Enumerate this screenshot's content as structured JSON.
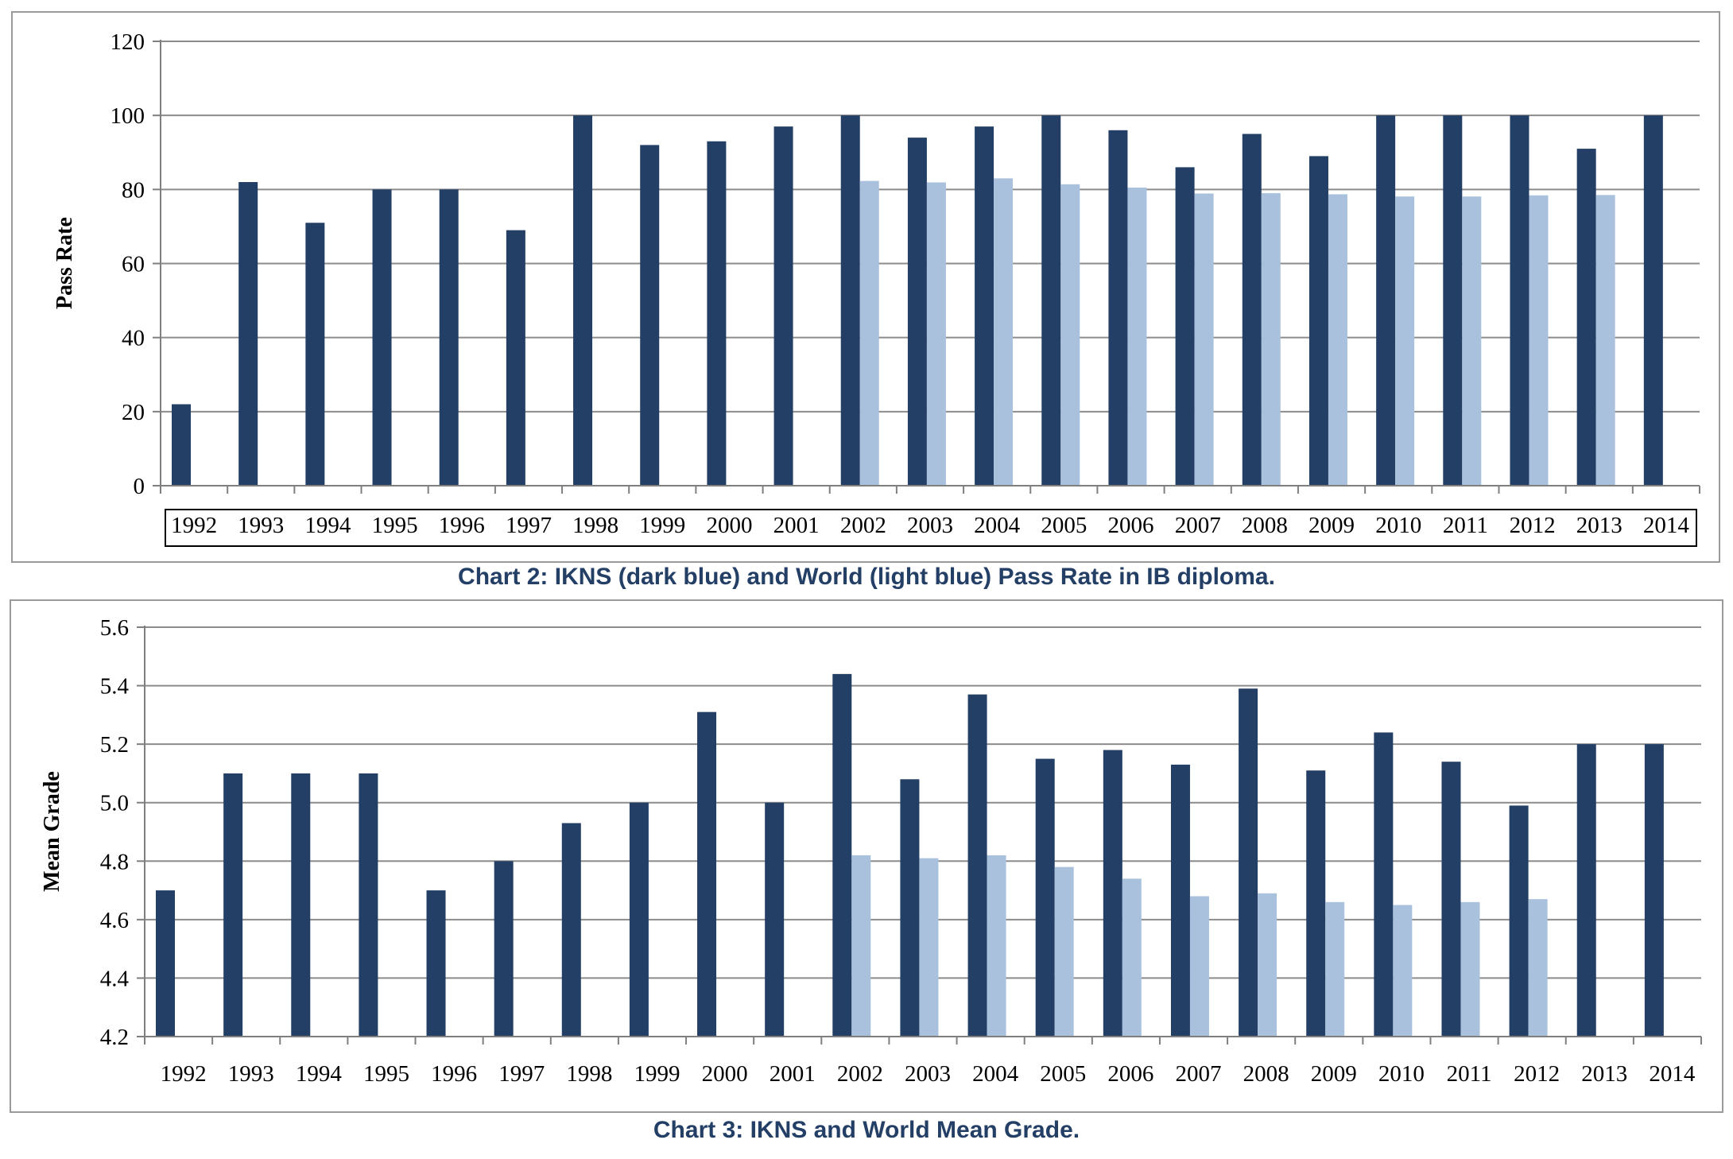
{
  "colors": {
    "ikns": "#243f66",
    "world": "#a9c1dd",
    "grid": "#8c8c8c",
    "axis": "#7f7f7f"
  },
  "chart_data": [
    {
      "type": "bar",
      "title": "Chart 2:  IKNS (dark blue) and World (light blue) Pass Rate in IB diploma.",
      "xlabel": "",
      "ylabel": "Pass Rate",
      "ylim": [
        0,
        120
      ],
      "yticks": [
        "0",
        "20",
        "40",
        "60",
        "80",
        "100",
        "120"
      ],
      "grid": true,
      "categories": [
        "1992",
        "1993",
        "1994",
        "1995",
        "1996",
        "1997",
        "1998",
        "1999",
        "2000",
        "2001",
        "2002",
        "2003",
        "2004",
        "2005",
        "2006",
        "2007",
        "2008",
        "2009",
        "2010",
        "2011",
        "2012",
        "2013",
        "2014"
      ],
      "series": [
        {
          "values": [
            22,
            82,
            71,
            80,
            80,
            69,
            100,
            92,
            93,
            97,
            100,
            94,
            97,
            100,
            96,
            86,
            95,
            89,
            100,
            100,
            100,
            91,
            100
          ]
        },
        {
          "values": [
            null,
            null,
            null,
            null,
            null,
            null,
            null,
            null,
            null,
            null,
            82.3,
            81.9,
            83,
            81.4,
            80.5,
            78.9,
            79,
            78.7,
            78.1,
            78.1,
            78.4,
            78.5,
            null
          ]
        }
      ]
    },
    {
      "type": "bar",
      "title": "Chart 3:  IKNS and World Mean Grade.",
      "xlabel": "",
      "ylabel": "Mean Grade",
      "ylim": [
        4.2,
        5.6
      ],
      "yticks": [
        "4.2",
        "4.4",
        "4.6",
        "4.8",
        "5.0",
        "5.2",
        "5.4",
        "5.6"
      ],
      "grid": true,
      "categories": [
        "1992",
        "1993",
        "1994",
        "1995",
        "1996",
        "1997",
        "1998",
        "1999",
        "2000",
        "2001",
        "2002",
        "2003",
        "2004",
        "2005",
        "2006",
        "2007",
        "2008",
        "2009",
        "2010",
        "2011",
        "2012",
        "2013",
        "2014"
      ],
      "series": [
        {
          "values": [
            4.7,
            5.1,
            5.1,
            5.1,
            4.7,
            4.8,
            4.93,
            5.0,
            5.31,
            5.0,
            5.44,
            5.08,
            5.37,
            5.15,
            5.18,
            5.13,
            5.39,
            5.11,
            5.24,
            5.14,
            4.99,
            5.2,
            5.2
          ]
        },
        {
          "values": [
            null,
            null,
            null,
            null,
            null,
            null,
            null,
            null,
            null,
            null,
            4.82,
            4.81,
            4.82,
            4.78,
            4.74,
            4.68,
            4.69,
            4.66,
            4.65,
            4.66,
            4.67,
            null,
            null
          ]
        }
      ]
    }
  ]
}
